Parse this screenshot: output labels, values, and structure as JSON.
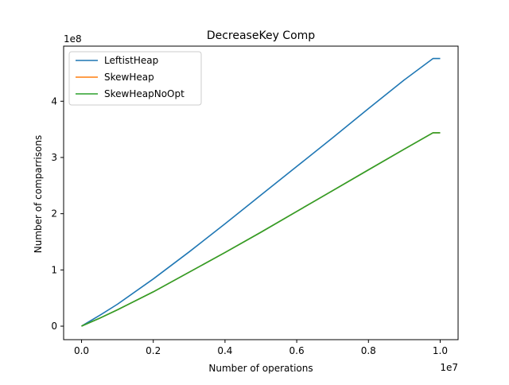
{
  "chart_data": {
    "type": "line",
    "title": "DecreaseKey Comp",
    "xlabel": "Number of operations",
    "ylabel": "Number of comparrisons",
    "x_offset_label": "1e7",
    "y_offset_label": "1e8",
    "xlim": [
      -0.05,
      1.05
    ],
    "ylim": [
      -0.24,
      4.98
    ],
    "x_scale": 10000000,
    "y_scale": 100000000,
    "x_ticks": [
      0.0,
      0.2,
      0.4,
      0.6,
      0.8,
      1.0
    ],
    "x_tick_labels": [
      "0.0",
      "0.2",
      "0.4",
      "0.6",
      "0.8",
      "1.0"
    ],
    "y_ticks": [
      0,
      1,
      2,
      3,
      4
    ],
    "y_tick_labels": [
      "0",
      "1",
      "2",
      "3",
      "4"
    ],
    "grid": false,
    "legend_position": "top-left",
    "x": [
      0.0,
      0.05,
      0.1,
      0.2,
      0.3,
      0.4,
      0.5,
      0.6,
      0.7,
      0.8,
      0.9,
      0.98,
      1.0
    ],
    "series": [
      {
        "name": "LeftistHeap",
        "color": "#1f77b4",
        "values": [
          0.0,
          0.19,
          0.39,
          0.84,
          1.32,
          1.82,
          2.33,
          2.84,
          3.35,
          3.87,
          4.38,
          4.76,
          4.76
        ]
      },
      {
        "name": "SkewHeap",
        "color": "#ff7f0e",
        "values": [
          0.0,
          0.14,
          0.29,
          0.61,
          0.96,
          1.31,
          1.67,
          2.04,
          2.41,
          2.78,
          3.15,
          3.44,
          3.44
        ]
      },
      {
        "name": "SkewHeapNoOpt",
        "color": "#2ca02c",
        "values": [
          0.0,
          0.14,
          0.29,
          0.61,
          0.96,
          1.31,
          1.67,
          2.04,
          2.41,
          2.78,
          3.15,
          3.44,
          3.44
        ]
      }
    ]
  }
}
